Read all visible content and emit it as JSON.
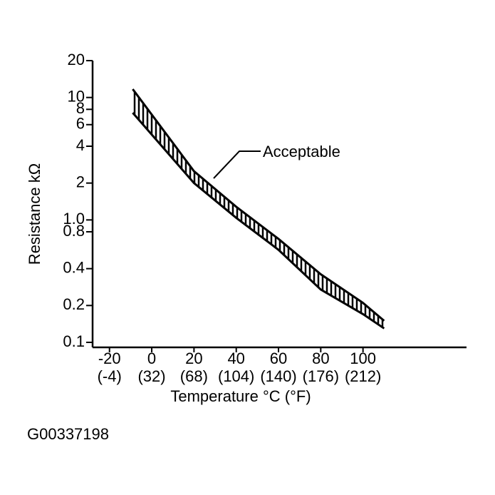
{
  "chart_data": {
    "type": "band",
    "x": [
      -9,
      20,
      40,
      60,
      80,
      100,
      110
    ],
    "series": [
      {
        "color": "#000000",
        "values": [
          11.7,
          2.5,
          1.28,
          0.7,
          0.36,
          0.21,
          0.15
        ]
      },
      {
        "color": "#000000",
        "values": [
          7.5,
          2.0,
          1.04,
          0.57,
          0.27,
          0.17,
          0.13
        ]
      }
    ],
    "annotation": "Acceptable",
    "ylabel": "Resistance kΩ",
    "xlabel": "Temperature °C (°F)",
    "ylim": [
      0.1,
      20
    ],
    "ylog": true,
    "yticks": [
      0.1,
      0.2,
      0.4,
      0.8,
      {
        "value": 1,
        "label": "1.0"
      },
      2,
      4,
      6,
      8,
      10,
      20
    ],
    "xlim": [
      -28,
      149
    ],
    "xticks": [
      -20,
      0,
      20,
      40,
      60,
      80,
      100
    ],
    "xtick_secondary_labels": [
      "(-4)",
      "(32)",
      "(68)",
      "(104)",
      "(140)",
      "(176)",
      "(212)"
    ],
    "caption": "G00337198"
  }
}
